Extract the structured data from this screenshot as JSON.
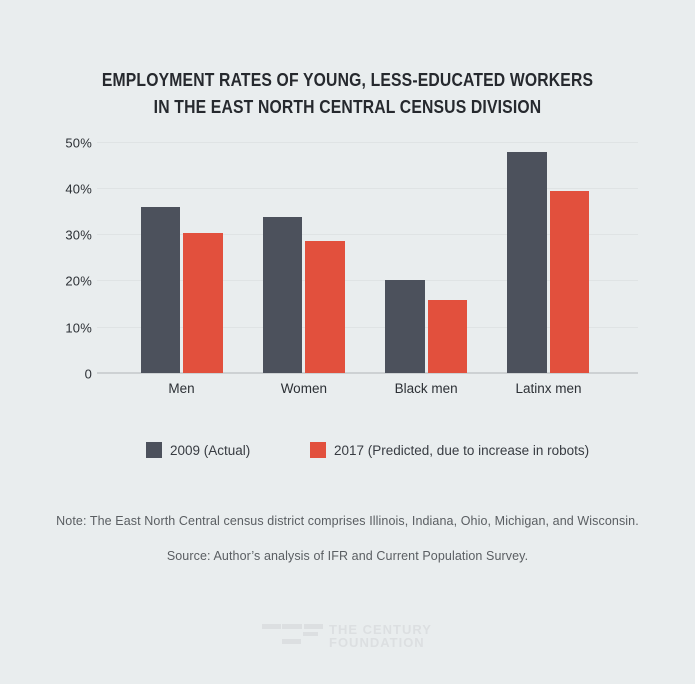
{
  "title": {
    "line1": "EMPLOYMENT RATES OF YOUNG, LESS-EDUCATED WORKERS",
    "line2": "IN THE EAST NORTH CENTRAL CENSUS DIVISION"
  },
  "chart_data": {
    "type": "bar",
    "title": "EMPLOYMENT RATES OF YOUNG, LESS-EDUCATED WORKERS IN THE EAST NORTH CENTRAL CENSUS DIVISION",
    "categories": [
      "Men",
      "Women",
      "Black men",
      "Latinx men"
    ],
    "series": [
      {
        "name": "2009 (Actual)",
        "color": "#4c515c",
        "values": [
          35.9,
          33.8,
          20.0,
          47.7
        ]
      },
      {
        "name": "2017 (Predicted, due to increase in robots)",
        "color": "#e2503d",
        "values": [
          30.2,
          28.6,
          15.7,
          39.3
        ]
      }
    ],
    "xlabel": "",
    "ylabel": "",
    "ylim": [
      0,
      50
    ],
    "yticks": [
      {
        "value": 0,
        "label": "0"
      },
      {
        "value": 10,
        "label": "10%"
      },
      {
        "value": 20,
        "label": "20%"
      },
      {
        "value": 30,
        "label": "30%"
      },
      {
        "value": 40,
        "label": "40%"
      },
      {
        "value": 50,
        "label": "50%"
      }
    ],
    "grid": true,
    "legend_position": "below"
  },
  "note": "Note: The East North Central census district comprises Illinois, Indiana, Ohio, Michigan, and Wisconsin.",
  "source": "Source: Author’s analysis of IFR and Current Population Survey.",
  "footer_logo": {
    "name": "The Century Foundation",
    "line1": "THE CENTURY",
    "line2": "FOUNDATION"
  },
  "colors": {
    "background": "#e9edee",
    "bar_2009": "#4c515c",
    "bar_2017": "#e2503d",
    "gridline": "#dfe3e4",
    "axis_line": "#cdd1d3",
    "title_text": "#26292e",
    "body_text": "#5a5e62",
    "logo": "#dcdfe1"
  }
}
